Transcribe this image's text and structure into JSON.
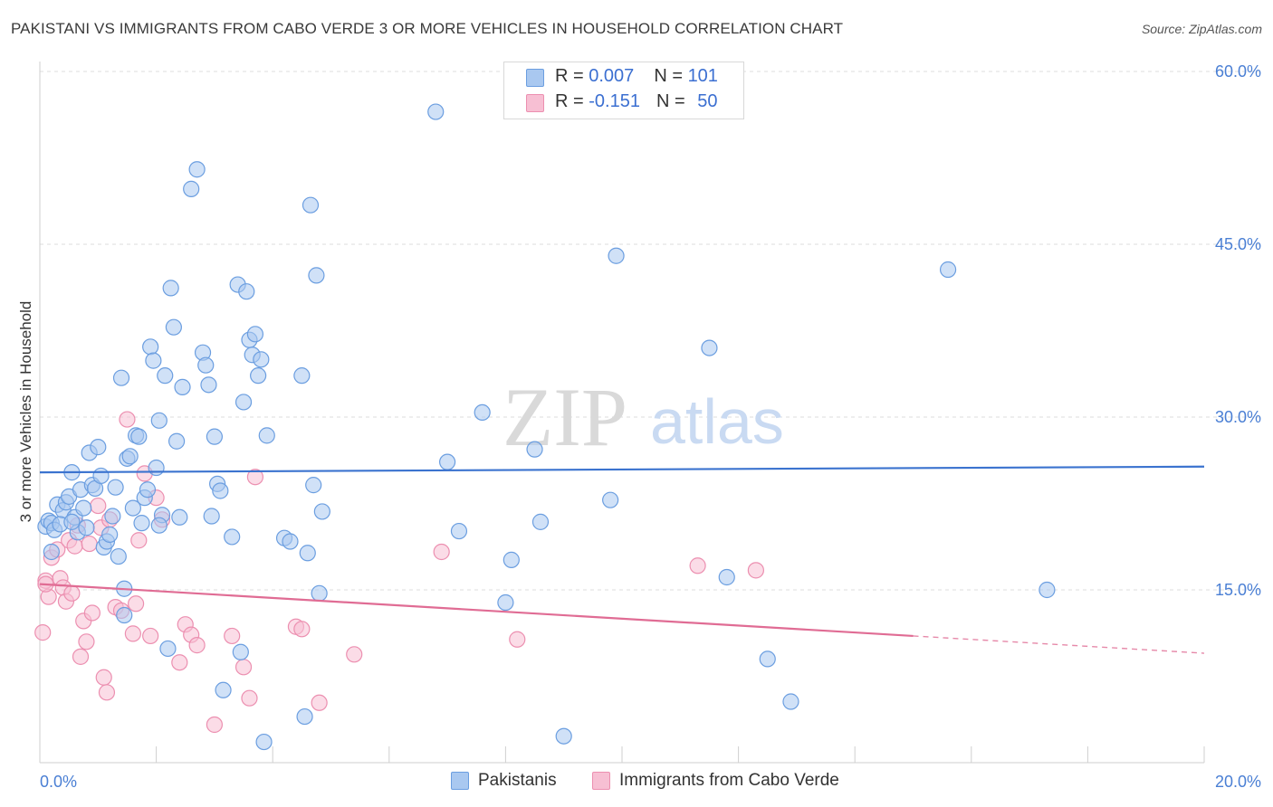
{
  "title": "PAKISTANI VS IMMIGRANTS FROM CABO VERDE 3 OR MORE VEHICLES IN HOUSEHOLD CORRELATION CHART",
  "source": "Source: ZipAtlas.com",
  "watermark": {
    "zip": "ZIP",
    "atlas": "atlas"
  },
  "legend": {
    "rows": [
      {
        "r_label": "R = ",
        "r_value": "0.007",
        "n_label": "N = ",
        "n_value": "101"
      },
      {
        "r_label": "R = ",
        "r_value": "-0.151",
        "n_label": "N = ",
        "n_value": "50"
      }
    ]
  },
  "chart_data": {
    "type": "scatter",
    "title": "PAKISTANI VS IMMIGRANTS FROM CABO VERDE 3 OR MORE VEHICLES IN HOUSEHOLD CORRELATION CHART",
    "xlabel": "",
    "ylabel": "3 or more Vehicles in Household",
    "xlim": [
      0,
      20
    ],
    "ylim": [
      0,
      60
    ],
    "x_ticks": [
      0,
      20
    ],
    "x_tick_labels": [
      "0.0%",
      "20.0%"
    ],
    "y_ticks": [
      15,
      30,
      45,
      60
    ],
    "y_tick_labels": [
      "15.0%",
      "30.0%",
      "45.0%",
      "60.0%"
    ],
    "grid": true,
    "legend_position": "top-center",
    "series": [
      {
        "name": "Pakistanis",
        "color": "#a9c8f0",
        "stroke": "#6b9ee0",
        "trend": {
          "x": [
            0,
            20
          ],
          "y": [
            25.2,
            25.7
          ],
          "color": "#3b73cf"
        },
        "points": [
          [
            0.1,
            20.5
          ],
          [
            0.15,
            21.0
          ],
          [
            0.2,
            20.8
          ],
          [
            0.25,
            20.2
          ],
          [
            0.3,
            22.4
          ],
          [
            0.4,
            21.9
          ],
          [
            0.45,
            22.6
          ],
          [
            0.5,
            23.1
          ],
          [
            0.55,
            25.2
          ],
          [
            0.6,
            21.3
          ],
          [
            0.65,
            20.0
          ],
          [
            0.7,
            23.7
          ],
          [
            0.75,
            22.1
          ],
          [
            0.8,
            20.4
          ],
          [
            0.85,
            26.9
          ],
          [
            0.9,
            24.1
          ],
          [
            0.95,
            23.8
          ],
          [
            1.0,
            27.4
          ],
          [
            1.05,
            24.9
          ],
          [
            1.1,
            18.7
          ],
          [
            1.15,
            19.2
          ],
          [
            1.2,
            19.8
          ],
          [
            1.25,
            21.4
          ],
          [
            1.3,
            23.9
          ],
          [
            1.35,
            17.9
          ],
          [
            1.4,
            33.4
          ],
          [
            1.45,
            12.8
          ],
          [
            1.5,
            26.4
          ],
          [
            1.55,
            26.6
          ],
          [
            1.6,
            22.1
          ],
          [
            1.65,
            28.4
          ],
          [
            1.7,
            28.3
          ],
          [
            1.75,
            20.8
          ],
          [
            1.8,
            23.0
          ],
          [
            1.85,
            23.7
          ],
          [
            1.9,
            36.1
          ],
          [
            1.95,
            34.9
          ],
          [
            2.0,
            25.6
          ],
          [
            2.05,
            29.7
          ],
          [
            2.1,
            21.5
          ],
          [
            2.15,
            33.6
          ],
          [
            2.2,
            9.9
          ],
          [
            2.25,
            41.2
          ],
          [
            2.3,
            37.8
          ],
          [
            2.35,
            27.9
          ],
          [
            2.4,
            21.3
          ],
          [
            2.45,
            32.6
          ],
          [
            2.6,
            49.8
          ],
          [
            2.7,
            51.5
          ],
          [
            2.8,
            35.6
          ],
          [
            2.85,
            34.5
          ],
          [
            2.9,
            32.8
          ],
          [
            2.95,
            21.4
          ],
          [
            3.0,
            28.3
          ],
          [
            3.05,
            24.2
          ],
          [
            3.1,
            23.6
          ],
          [
            3.15,
            6.3
          ],
          [
            3.3,
            19.6
          ],
          [
            3.4,
            41.5
          ],
          [
            3.45,
            9.6
          ],
          [
            3.5,
            31.3
          ],
          [
            3.55,
            40.9
          ],
          [
            3.6,
            36.7
          ],
          [
            3.65,
            35.4
          ],
          [
            3.7,
            37.2
          ],
          [
            3.75,
            33.6
          ],
          [
            3.8,
            35.0
          ],
          [
            3.85,
            1.8
          ],
          [
            3.9,
            28.4
          ],
          [
            4.2,
            19.5
          ],
          [
            4.3,
            19.2
          ],
          [
            4.5,
            33.6
          ],
          [
            4.55,
            4.0
          ],
          [
            4.6,
            18.2
          ],
          [
            4.65,
            48.4
          ],
          [
            4.7,
            24.1
          ],
          [
            4.75,
            42.3
          ],
          [
            4.8,
            14.7
          ],
          [
            4.85,
            21.8
          ],
          [
            6.8,
            56.5
          ],
          [
            7.0,
            26.1
          ],
          [
            7.2,
            20.1
          ],
          [
            7.6,
            30.4
          ],
          [
            8.0,
            13.9
          ],
          [
            8.1,
            17.6
          ],
          [
            8.5,
            27.2
          ],
          [
            8.6,
            20.9
          ],
          [
            9.0,
            2.3
          ],
          [
            9.8,
            22.8
          ],
          [
            9.9,
            44.0
          ],
          [
            11.5,
            36.0
          ],
          [
            11.8,
            16.1
          ],
          [
            12.5,
            9.0
          ],
          [
            12.9,
            5.3
          ],
          [
            15.6,
            42.8
          ],
          [
            17.3,
            15.0
          ],
          [
            0.35,
            20.7
          ],
          [
            0.55,
            20.9
          ],
          [
            2.05,
            20.6
          ],
          [
            1.45,
            15.1
          ],
          [
            0.2,
            18.3
          ]
        ]
      },
      {
        "name": "Immigrants from Cabo Verde",
        "color": "#f7bfd3",
        "stroke": "#ec8fb0",
        "trend": {
          "x": [
            0,
            15
          ],
          "y": [
            15.5,
            11.0
          ],
          "color": "#e06c94",
          "dash_to": [
            20,
            9.5
          ]
        },
        "points": [
          [
            0.05,
            11.3
          ],
          [
            0.1,
            15.8
          ],
          [
            0.15,
            14.4
          ],
          [
            0.2,
            17.8
          ],
          [
            0.3,
            18.5
          ],
          [
            0.35,
            16.0
          ],
          [
            0.4,
            15.2
          ],
          [
            0.45,
            14.0
          ],
          [
            0.5,
            19.3
          ],
          [
            0.55,
            14.7
          ],
          [
            0.6,
            18.8
          ],
          [
            0.65,
            20.6
          ],
          [
            0.7,
            9.2
          ],
          [
            0.75,
            12.3
          ],
          [
            0.8,
            10.5
          ],
          [
            0.85,
            19.0
          ],
          [
            0.9,
            13.0
          ],
          [
            1.0,
            22.3
          ],
          [
            1.05,
            20.4
          ],
          [
            1.1,
            7.4
          ],
          [
            1.15,
            6.1
          ],
          [
            1.2,
            21.1
          ],
          [
            1.3,
            13.5
          ],
          [
            1.4,
            13.2
          ],
          [
            1.5,
            29.8
          ],
          [
            1.6,
            11.2
          ],
          [
            1.65,
            13.8
          ],
          [
            1.7,
            19.3
          ],
          [
            1.8,
            25.1
          ],
          [
            1.9,
            11.0
          ],
          [
            2.0,
            23.0
          ],
          [
            2.1,
            21.1
          ],
          [
            2.4,
            8.7
          ],
          [
            2.5,
            12.0
          ],
          [
            2.6,
            11.1
          ],
          [
            2.7,
            10.2
          ],
          [
            3.0,
            3.3
          ],
          [
            3.3,
            11.0
          ],
          [
            3.5,
            8.3
          ],
          [
            3.6,
            5.6
          ],
          [
            3.7,
            24.8
          ],
          [
            4.4,
            11.8
          ],
          [
            4.5,
            11.6
          ],
          [
            4.8,
            5.2
          ],
          [
            5.4,
            9.4
          ],
          [
            6.9,
            18.3
          ],
          [
            8.2,
            10.7
          ],
          [
            11.3,
            17.1
          ],
          [
            12.3,
            16.7
          ],
          [
            0.1,
            15.5
          ]
        ]
      }
    ]
  }
}
